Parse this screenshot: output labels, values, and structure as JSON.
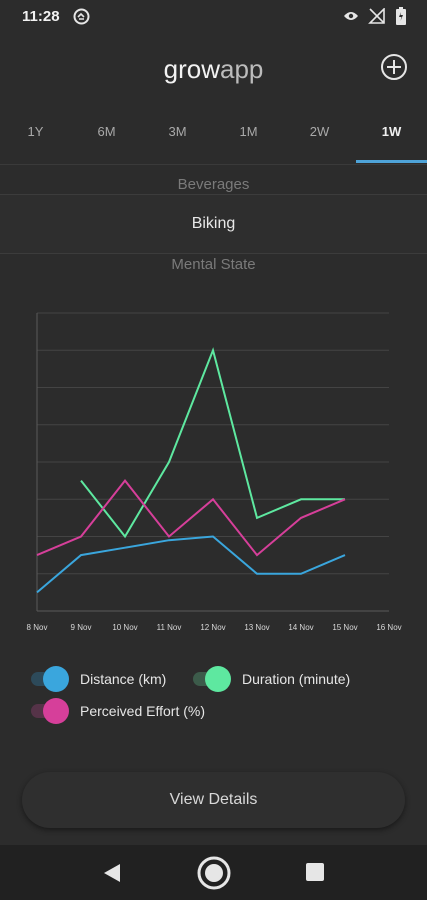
{
  "status_bar": {
    "time": "11:28",
    "icons": [
      "sync-icon",
      "eye-icon",
      "no-signal-icon",
      "battery-icon"
    ]
  },
  "app": {
    "title_main": "grow",
    "title_suffix": "app",
    "add_icon": "plus-circle-icon"
  },
  "tabs": [
    {
      "label": "1Y",
      "active": false
    },
    {
      "label": "6M",
      "active": false
    },
    {
      "label": "3M",
      "active": false
    },
    {
      "label": "1M",
      "active": false
    },
    {
      "label": "2W",
      "active": false
    },
    {
      "label": "1W",
      "active": true
    }
  ],
  "category_picker": {
    "above": "Beverages",
    "selected": "Biking",
    "below": "Mental State"
  },
  "chart_data": {
    "type": "line",
    "x": [
      "8 Nov",
      "9 Nov",
      "10 Nov",
      "11 Nov",
      "12 Nov",
      "13 Nov",
      "14 Nov",
      "15 Nov",
      "16 Nov"
    ],
    "ylim": [
      0,
      8
    ],
    "grid": true,
    "series": [
      {
        "name": "Distance (km)",
        "color": "#3aa6dd",
        "values": [
          0.5,
          1.5,
          1.7,
          1.9,
          2.0,
          1.0,
          1.0,
          1.5,
          null
        ]
      },
      {
        "name": "Duration (minute)",
        "color": "#5ee8a0",
        "values": [
          null,
          3.5,
          2.0,
          4.0,
          7.0,
          2.5,
          3.0,
          3.0,
          null
        ]
      },
      {
        "name": "Perceived Effort (%)",
        "color": "#d63f9a",
        "values": [
          1.5,
          2.0,
          3.5,
          2.0,
          3.0,
          1.5,
          2.5,
          3.0,
          null
        ]
      }
    ]
  },
  "legend": [
    {
      "label": "Distance (km)",
      "color": "#3aa6dd",
      "track": "#2d4a5a"
    },
    {
      "label": "Duration (minute)",
      "color": "#5ee8a0",
      "track": "#3c5b4a"
    },
    {
      "label": "Perceived Effort (%)",
      "color": "#d63f9a",
      "track": "#553348"
    }
  ],
  "view_details": "View Details",
  "nav": [
    "back-icon",
    "home-icon",
    "recents-icon"
  ]
}
